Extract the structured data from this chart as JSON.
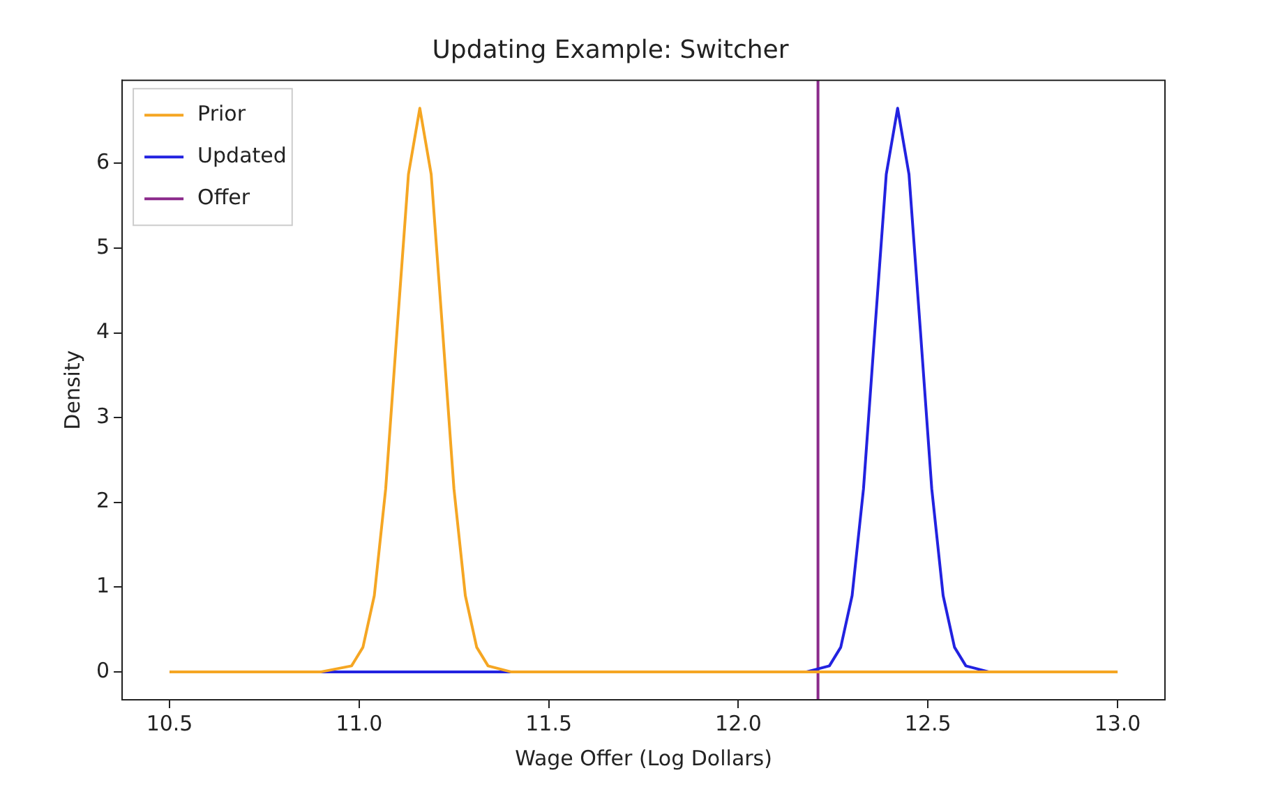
{
  "chart_data": {
    "type": "line",
    "title": "Updating Example: Switcher",
    "xlabel": "Wage Offer (Log Dollars)",
    "ylabel": "Density",
    "series": [
      {
        "name": "Prior",
        "color": "#f5a623",
        "x": [
          10.5,
          10.9,
          10.98,
          11.01,
          11.04,
          11.07,
          11.1,
          11.13,
          11.16,
          11.19,
          11.22,
          11.25,
          11.28,
          11.31,
          11.34,
          11.4,
          13.0
        ],
        "values": [
          0,
          0,
          0.07,
          0.29,
          0.9,
          2.16,
          4.03,
          5.87,
          6.65,
          5.87,
          4.03,
          2.16,
          0.9,
          0.29,
          0.07,
          0,
          0
        ]
      },
      {
        "name": "Updated",
        "color": "#2222e0",
        "x": [
          10.5,
          12.18,
          12.24,
          12.27,
          12.3,
          12.33,
          12.36,
          12.39,
          12.42,
          12.45,
          12.48,
          12.51,
          12.54,
          12.57,
          12.6,
          12.66,
          13.0
        ],
        "values": [
          0,
          0,
          0.07,
          0.29,
          0.9,
          2.16,
          4.03,
          5.87,
          6.65,
          5.87,
          4.03,
          2.16,
          0.9,
          0.29,
          0.07,
          0,
          0
        ]
      },
      {
        "name": "Offer",
        "color": "#8b2a8b",
        "x": [
          12.21,
          12.21
        ],
        "values": [
          -0.33,
          6.98
        ]
      }
    ],
    "xlim": [
      10.375,
      13.125
    ],
    "xticks": [
      {
        "value": 10.5,
        "label": "10.5"
      },
      {
        "value": 11,
        "label": "11.0"
      },
      {
        "value": 11.5,
        "label": "11.5"
      },
      {
        "value": 12,
        "label": "12.0"
      },
      {
        "value": 12.5,
        "label": "12.5"
      },
      {
        "value": 13,
        "label": "13.0"
      }
    ],
    "ylim": [
      -0.33,
      6.98
    ],
    "yticks": [
      0,
      1,
      2,
      3,
      4,
      5,
      6
    ],
    "grid": false,
    "legend": "top left",
    "marker": "none",
    "line_style": "solid"
  }
}
